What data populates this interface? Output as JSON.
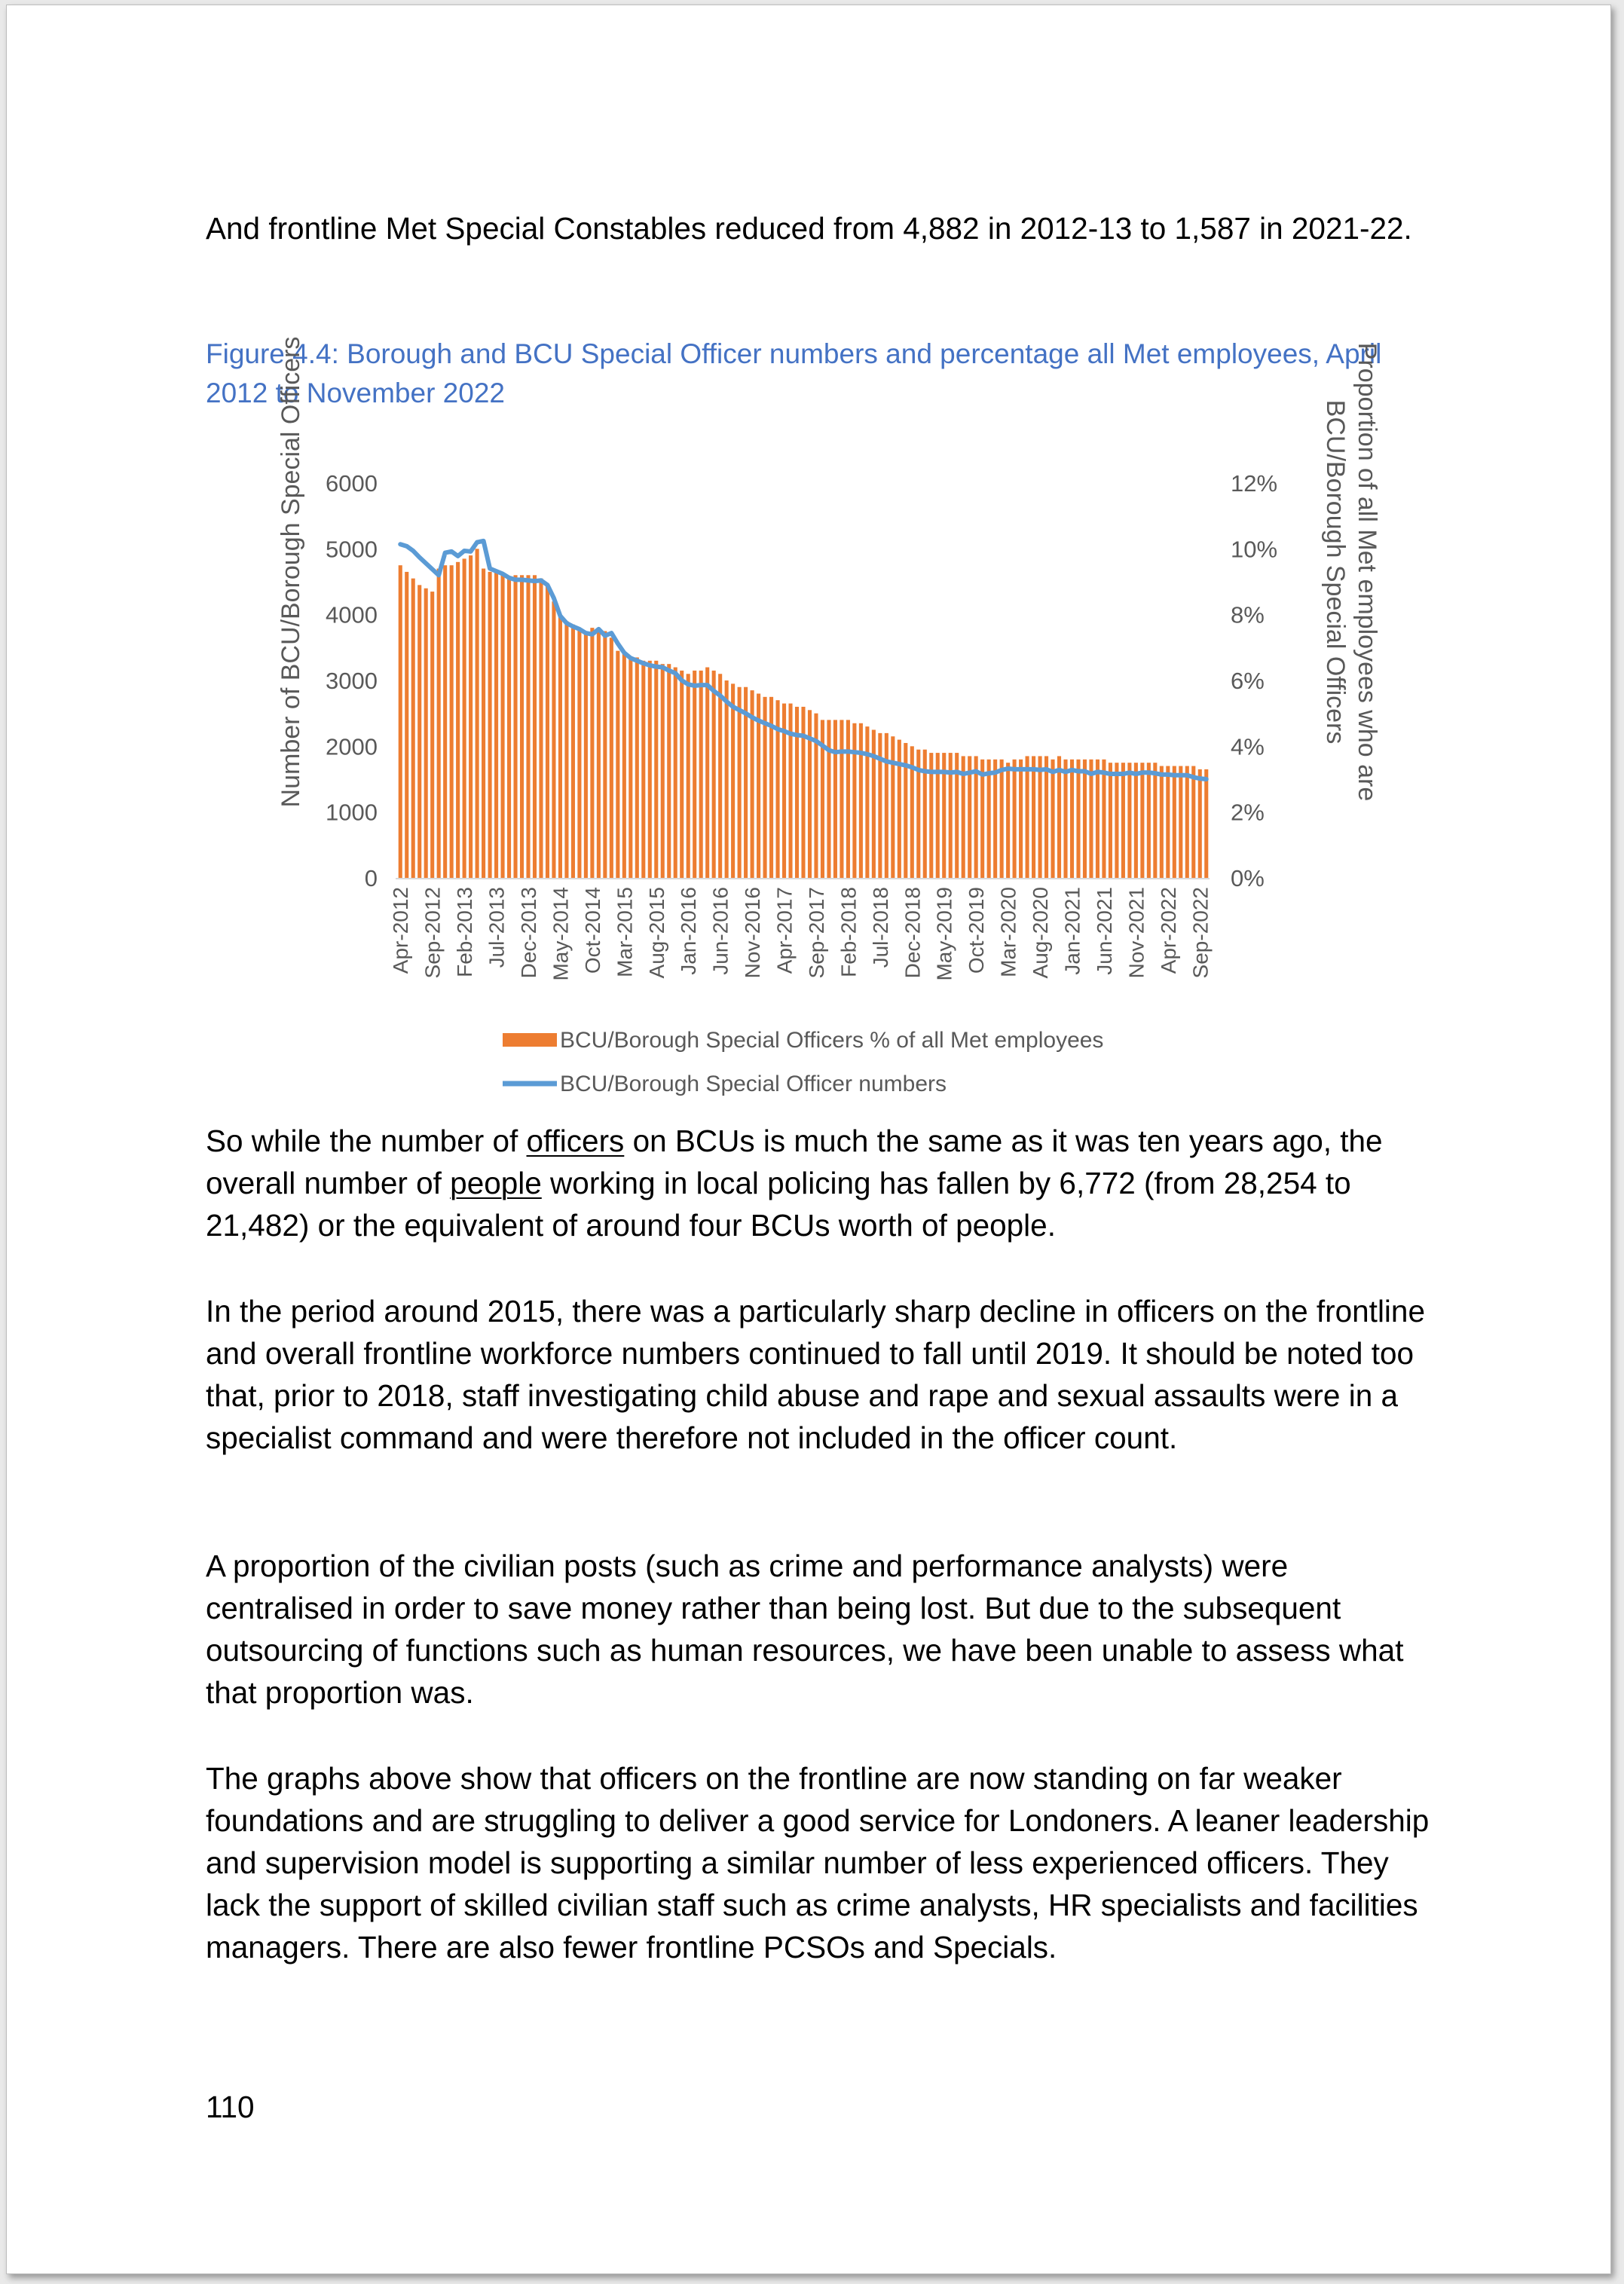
{
  "document": {
    "intro": "And frontline Met Special Constables reduced from 4,882 in 2012-13 to 1,587 in 2021-22.",
    "figure_caption": "Figure 4.4: Borough and BCU Special Officer numbers and percentage all Met employees, April 2012 to November 2022",
    "para1": {
      "part1": "So while the number of ",
      "officers": "officers",
      "part2": " on BCUs is much the same as it was ten years ago, the overall number of ",
      "people": "people",
      "part3": " working in local policing has fallen by 6,772 (from 28,254 to 21,482) or the equivalent of around four BCUs worth of people."
    },
    "para2": "In the period around 2015, there was a particularly sharp decline in officers on the frontline and overall frontline workforce numbers continued to fall until 2019. It should be noted too that, prior to 2018, staff investigating child abuse and rape and sexual assaults were in a specialist command and were therefore not included in the officer count.",
    "para3": "A proportion of the civilian posts (such as crime and performance analysts) were centralised in order to save money rather than being lost. But due to the subsequent outsourcing of functions such as human resources, we have been unable to assess what that proportion was.",
    "para4": "The graphs above show that officers on the frontline are now standing on far weaker foundations and are struggling to deliver a good service for Londoners. A leaner leadership and supervision model is supporting a similar number of less experienced officers. They lack the support of skilled civilian staff such as crime analysts, HR specialists and facilities managers. There are also fewer frontline PCSOs and Specials.",
    "page_number": "110"
  },
  "chart_data": {
    "type": "bar+line",
    "ylabel": "Number of BCU/Borough Special Officers",
    "y2label_lines": [
      "Proportion of all Met employees who are",
      "BCU/Borough Special Officers"
    ],
    "ylim": [
      0,
      6000
    ],
    "yticks": [
      "6000",
      "5000",
      "4000",
      "3000",
      "2000",
      "1000",
      "0"
    ],
    "y2lim": [
      0,
      12
    ],
    "y2ticks": [
      "12%",
      "10%",
      "8%",
      "6%",
      "4%",
      "2%",
      "0%"
    ],
    "grid": false,
    "legend_position": "bottom",
    "colors": {
      "bars": "#ed7d31",
      "line": "#5b9bd5",
      "axis_text": "#595959"
    },
    "x_labels": [
      "Apr-2012",
      "Sep-2012",
      "Feb-2013",
      "Jul-2013",
      "Dec-2013",
      "May-2014",
      "Oct-2014",
      "Mar-2015",
      "Aug-2015",
      "Jan-2016",
      "Jun-2016",
      "Nov-2016",
      "Apr-2017",
      "Sep-2017",
      "Feb-2018",
      "Jul-2018",
      "Dec-2018",
      "May-2019",
      "Oct-2019",
      "Mar-2020",
      "Aug-2020",
      "Jan-2021",
      "Jun-2021",
      "Nov-2021",
      "Apr-2022",
      "Sep-2022"
    ],
    "x_label_step_months": 5,
    "series": [
      {
        "name": "BCU/Borough Special Officers % of all Met employees",
        "kind": "bar",
        "axis": "right",
        "unit": "%",
        "values": [
          9.5,
          9.3,
          9.1,
          8.9,
          8.8,
          8.7,
          9.4,
          9.5,
          9.5,
          9.6,
          9.7,
          9.8,
          10.0,
          9.4,
          9.3,
          9.3,
          9.2,
          9.1,
          9.2,
          9.2,
          9.2,
          9.2,
          9.1,
          8.9,
          8.4,
          8.0,
          7.8,
          7.7,
          7.6,
          7.5,
          7.6,
          7.6,
          7.5,
          7.3,
          6.9,
          6.8,
          6.7,
          6.7,
          6.6,
          6.6,
          6.6,
          6.5,
          6.5,
          6.4,
          6.3,
          6.2,
          6.3,
          6.3,
          6.4,
          6.3,
          6.2,
          6.0,
          5.9,
          5.8,
          5.8,
          5.7,
          5.6,
          5.5,
          5.5,
          5.4,
          5.3,
          5.3,
          5.2,
          5.2,
          5.1,
          5.0,
          4.8,
          4.8,
          4.8,
          4.8,
          4.8,
          4.7,
          4.7,
          4.6,
          4.5,
          4.4,
          4.4,
          4.3,
          4.2,
          4.1,
          4.0,
          3.9,
          3.9,
          3.8,
          3.8,
          3.8,
          3.8,
          3.8,
          3.7,
          3.7,
          3.7,
          3.6,
          3.6,
          3.6,
          3.6,
          3.5,
          3.6,
          3.6,
          3.7,
          3.7,
          3.7,
          3.7,
          3.6,
          3.7,
          3.6,
          3.6,
          3.6,
          3.6,
          3.6,
          3.6,
          3.6,
          3.5,
          3.5,
          3.5,
          3.5,
          3.5,
          3.5,
          3.5,
          3.5,
          3.4,
          3.4,
          3.4,
          3.4,
          3.4,
          3.4,
          3.3,
          3.3
        ]
      },
      {
        "name": "BCU/Borough Special Officer numbers",
        "kind": "line",
        "axis": "left",
        "values": [
          5070,
          5040,
          4970,
          4870,
          4780,
          4690,
          4600,
          4940,
          4960,
          4890,
          4970,
          4960,
          5100,
          5120,
          4700,
          4660,
          4620,
          4560,
          4530,
          4530,
          4520,
          4510,
          4520,
          4450,
          4250,
          3980,
          3870,
          3820,
          3780,
          3720,
          3700,
          3780,
          3680,
          3720,
          3560,
          3420,
          3340,
          3300,
          3260,
          3230,
          3210,
          3200,
          3150,
          3110,
          3000,
          2940,
          2920,
          2930,
          2930,
          2840,
          2770,
          2680,
          2600,
          2550,
          2500,
          2440,
          2390,
          2350,
          2310,
          2260,
          2230,
          2190,
          2170,
          2160,
          2120,
          2080,
          2010,
          1940,
          1910,
          1920,
          1920,
          1910,
          1900,
          1880,
          1850,
          1810,
          1770,
          1750,
          1730,
          1710,
          1680,
          1640,
          1620,
          1610,
          1610,
          1610,
          1600,
          1610,
          1580,
          1600,
          1620,
          1570,
          1590,
          1600,
          1640,
          1660,
          1650,
          1650,
          1650,
          1650,
          1640,
          1650,
          1610,
          1640,
          1610,
          1640,
          1620,
          1620,
          1580,
          1610,
          1600,
          1580,
          1580,
          1580,
          1600,
          1580,
          1600,
          1600,
          1590,
          1570,
          1570,
          1560,
          1560,
          1560,
          1530,
          1510,
          1500
        ]
      }
    ]
  }
}
